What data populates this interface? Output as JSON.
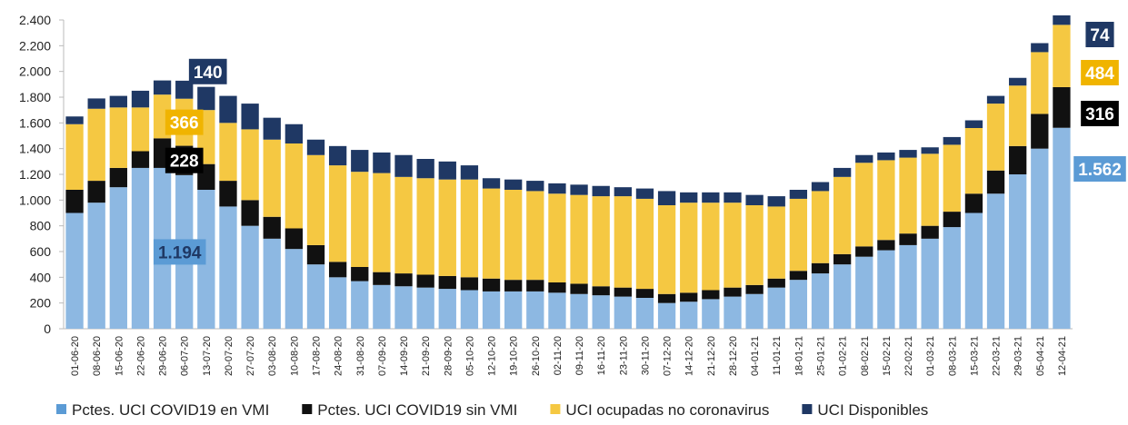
{
  "chart_data": {
    "type": "stacked_bar",
    "categories": [
      "01-06-20",
      "08-06-20",
      "15-06-20",
      "22-06-20",
      "29-06-20",
      "06-07-20",
      "13-07-20",
      "20-07-20",
      "27-07-20",
      "03-08-20",
      "10-08-20",
      "17-08-20",
      "24-08-20",
      "31-08-20",
      "07-09-20",
      "14-09-20",
      "21-09-20",
      "28-09-20",
      "05-10-20",
      "12-10-20",
      "19-10-20",
      "26-10-20",
      "02-11-20",
      "09-11-20",
      "16-11-20",
      "23-11-20",
      "30-11-20",
      "07-12-20",
      "14-12-20",
      "21-12-20",
      "28-12-20",
      "04-01-21",
      "11-01-21",
      "18-01-21",
      "25-01-21",
      "01-02-21",
      "08-02-21",
      "15-02-21",
      "22-02-21",
      "01-03-21",
      "08-03-21",
      "15-03-21",
      "22-03-21",
      "29-03-21",
      "05-04-21",
      "12-04-21"
    ],
    "series": [
      {
        "name": "Pctes. UCI COVID19 en VMI",
        "color": "#8db8e2",
        "label_box": "#5b9bd5",
        "values": [
          900,
          980,
          1100,
          1250,
          1250,
          1194,
          1080,
          950,
          800,
          700,
          620,
          500,
          400,
          370,
          340,
          330,
          320,
          310,
          300,
          290,
          290,
          290,
          280,
          270,
          260,
          250,
          240,
          200,
          210,
          230,
          250,
          270,
          320,
          380,
          430,
          500,
          560,
          610,
          650,
          700,
          790,
          900,
          1050,
          1200,
          1400,
          1562
        ],
        "value_labels": [
          null,
          null,
          null,
          null,
          null,
          "1.194",
          null,
          null,
          null,
          null,
          null,
          null,
          null,
          null,
          null,
          null,
          null,
          null,
          null,
          null,
          null,
          null,
          null,
          null,
          null,
          null,
          null,
          null,
          null,
          null,
          null,
          null,
          null,
          null,
          null,
          null,
          null,
          null,
          null,
          null,
          null,
          null,
          null,
          null,
          null,
          "1.562"
        ]
      },
      {
        "name": "Pctes. UCI COVID19 sin VMI",
        "color": "#111111",
        "label_box": "#000000",
        "values": [
          180,
          170,
          150,
          130,
          230,
          228,
          200,
          200,
          200,
          170,
          160,
          150,
          120,
          110,
          100,
          100,
          100,
          100,
          100,
          100,
          90,
          90,
          80,
          80,
          70,
          70,
          70,
          70,
          70,
          70,
          70,
          70,
          70,
          70,
          80,
          80,
          80,
          80,
          90,
          100,
          120,
          150,
          180,
          220,
          270,
          316
        ]
      },
      {
        "name": "UCI ocupadas no coronavirus",
        "color": "#f5c842",
        "label_box": "#f0b400",
        "values": [
          510,
          560,
          470,
          340,
          340,
          366,
          420,
          450,
          550,
          600,
          660,
          700,
          750,
          740,
          770,
          750,
          750,
          750,
          760,
          700,
          700,
          690,
          690,
          690,
          700,
          710,
          700,
          690,
          700,
          680,
          660,
          620,
          560,
          560,
          560,
          600,
          650,
          620,
          590,
          560,
          520,
          510,
          520,
          470,
          480,
          484
        ]
      },
      {
        "name": "UCI Disponibles",
        "color": "#1f3864",
        "label_box": "#1f3864",
        "values": [
          60,
          80,
          90,
          130,
          110,
          140,
          180,
          210,
          200,
          170,
          150,
          120,
          150,
          170,
          160,
          170,
          150,
          140,
          110,
          80,
          80,
          80,
          80,
          80,
          80,
          70,
          80,
          110,
          80,
          80,
          80,
          80,
          80,
          70,
          70,
          70,
          60,
          60,
          60,
          50,
          60,
          60,
          60,
          60,
          70,
          74
        ]
      }
    ],
    "ylim": [
      0,
      2400
    ],
    "yticks": [
      0,
      200,
      400,
      600,
      800,
      {
        "value": 1000,
        "label": "1.000"
      },
      {
        "value": 1200,
        "label": "1.200"
      },
      {
        "value": 1400,
        "label": "1.400"
      },
      {
        "value": 1600,
        "label": "1.600"
      },
      {
        "value": 1800,
        "label": "1.800"
      },
      {
        "value": 2000,
        "label": "2.000"
      },
      {
        "value": 2200,
        "label": "2.200"
      },
      {
        "value": 2400,
        "label": "2.400"
      }
    ],
    "grid": false,
    "legend": "bottom"
  }
}
